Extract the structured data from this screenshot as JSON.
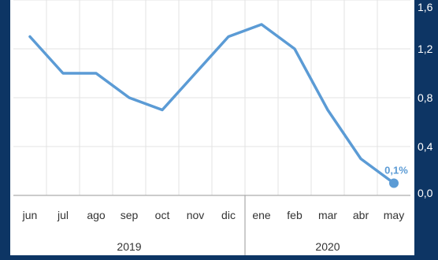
{
  "chart_data": {
    "type": "line",
    "categories": [
      "jun",
      "jul",
      "ago",
      "sep",
      "oct",
      "nov",
      "dic",
      "ene",
      "feb",
      "mar",
      "abr",
      "may"
    ],
    "groups": [
      {
        "label": "2019",
        "count": 7
      },
      {
        "label": "2020",
        "count": 5
      }
    ],
    "series": [
      {
        "values": [
          1.3,
          1.0,
          1.0,
          0.8,
          0.7,
          1.0,
          1.3,
          1.4,
          1.2,
          0.7,
          0.3,
          0.1
        ]
      }
    ],
    "ylim": [
      0,
      1.6
    ],
    "yticks": [
      0,
      0.4,
      0.8,
      1.2,
      1.6
    ],
    "ytick_labels": [
      "0,0",
      "0,4",
      "0,8",
      "1,2",
      "1,6"
    ],
    "last_point_label": "0,1%",
    "grid": true,
    "colors": {
      "line": "#5b9bd5",
      "background": "#0d3564",
      "panel": "#ffffff",
      "grid": "#e3e3e3"
    }
  }
}
